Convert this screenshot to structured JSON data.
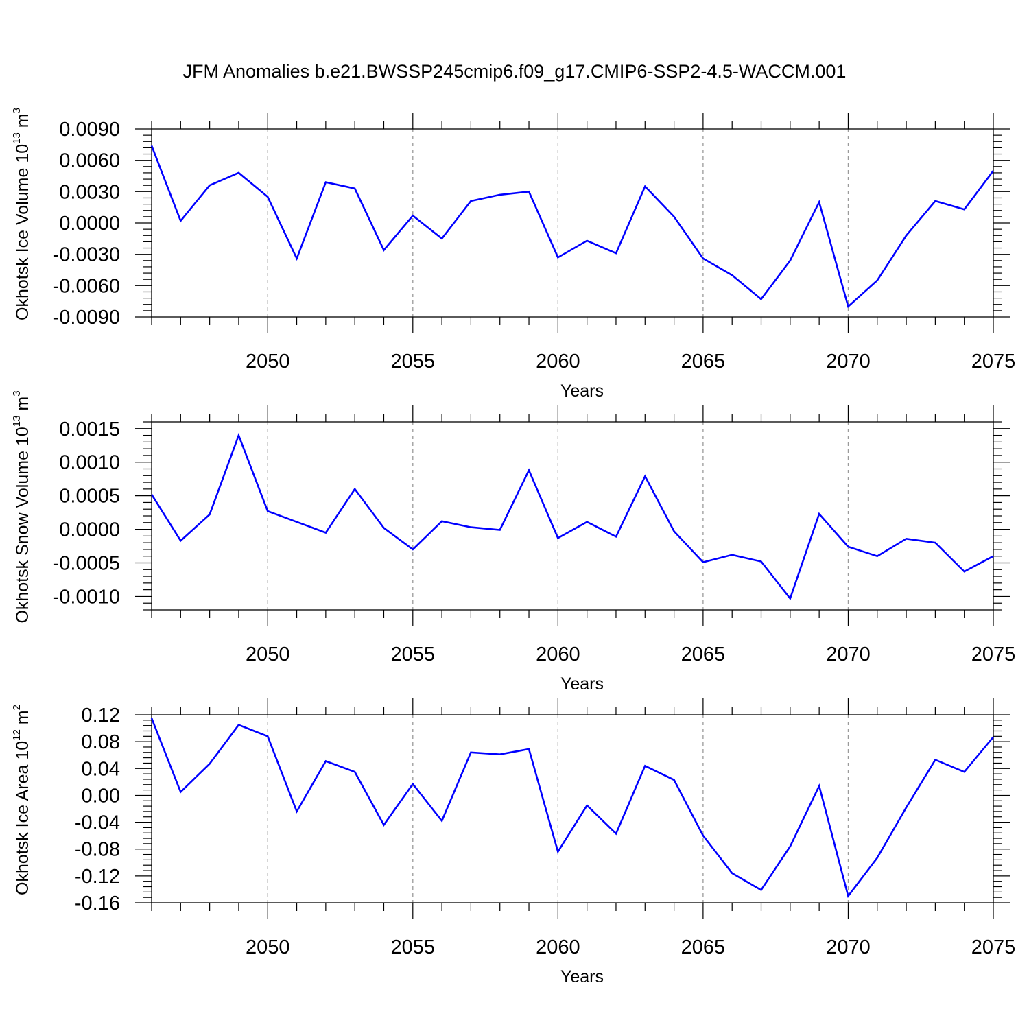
{
  "title": "JFM Anomalies b.e21.BWSSP245cmip6.f09_g17.CMIP6-SSP2-4.5-WACCM.001",
  "line_color": "#0000ff",
  "chart_data": [
    {
      "type": "line",
      "ylabel": "Okhotsk Ice Volume 10",
      "ylabel_exp": "13",
      "ylabel_unit": " m",
      "ylabel_unit_exp": "3",
      "xlabel": "Years",
      "xlim": [
        2046,
        2075
      ],
      "ylim": [
        -0.009,
        0.009
      ],
      "x_ticks": [
        2050,
        2055,
        2060,
        2065,
        2070,
        2075
      ],
      "y_ticks": [
        0.009,
        0.006,
        0.003,
        0.0,
        -0.003,
        -0.006,
        -0.009
      ],
      "y_tick_labels": [
        "0.0090",
        "0.0060",
        "0.0030",
        "0.0000",
        "-0.0030",
        "-0.0060",
        "-0.0090"
      ],
      "x": [
        2046,
        2047,
        2048,
        2049,
        2050,
        2051,
        2052,
        2053,
        2054,
        2055,
        2056,
        2057,
        2058,
        2059,
        2060,
        2061,
        2062,
        2063,
        2064,
        2065,
        2066,
        2067,
        2068,
        2069,
        2070,
        2071,
        2072,
        2073,
        2074,
        2075
      ],
      "values": [
        0.0074,
        0.0002,
        0.0036,
        0.0048,
        0.0025,
        -0.0034,
        0.0039,
        0.0033,
        -0.0026,
        0.0007,
        -0.0015,
        0.0021,
        0.0027,
        0.003,
        -0.0033,
        -0.0017,
        -0.0029,
        0.0035,
        0.0006,
        -0.0034,
        -0.005,
        -0.0073,
        -0.0036,
        0.002,
        -0.008,
        -0.0055,
        -0.0012,
        0.0021,
        0.0013,
        0.005
      ]
    },
    {
      "type": "line",
      "ylabel": "Okhotsk Snow Volume 10",
      "ylabel_exp": "13",
      "ylabel_unit": " m",
      "ylabel_unit_exp": "3",
      "xlabel": "Years",
      "xlim": [
        2046,
        2075
      ],
      "ylim": [
        -0.0012,
        0.0016
      ],
      "x_ticks": [
        2050,
        2055,
        2060,
        2065,
        2070,
        2075
      ],
      "y_ticks": [
        0.0015,
        0.001,
        0.0005,
        0.0,
        -0.0005,
        -0.001
      ],
      "y_tick_labels": [
        "0.0015",
        "0.0010",
        "0.0005",
        "0.0000",
        "-0.0005",
        "-0.0010"
      ],
      "x": [
        2046,
        2047,
        2048,
        2049,
        2050,
        2051,
        2052,
        2053,
        2054,
        2055,
        2056,
        2057,
        2058,
        2059,
        2060,
        2061,
        2062,
        2063,
        2064,
        2065,
        2066,
        2067,
        2068,
        2069,
        2070,
        2071,
        2072,
        2073,
        2074,
        2075
      ],
      "values": [
        0.00052,
        -0.00017,
        0.00022,
        0.0014,
        0.00027,
        0.00011,
        -5e-05,
        0.0006,
        2e-05,
        -0.0003,
        0.00012,
        3e-05,
        -1e-05,
        0.00088,
        -0.00013,
        0.00011,
        -0.00011,
        0.00079,
        -3e-05,
        -0.00049,
        -0.00038,
        -0.00048,
        -0.00103,
        0.00023,
        -0.00026,
        -0.0004,
        -0.00014,
        -0.0002,
        -0.00063,
        -0.0004
      ]
    },
    {
      "type": "line",
      "ylabel": "Okhotsk Ice Area 10",
      "ylabel_exp": "12",
      "ylabel_unit": " m",
      "ylabel_unit_exp": "2",
      "xlabel": "Years",
      "xlim": [
        2046,
        2075
      ],
      "ylim": [
        -0.16,
        0.12
      ],
      "x_ticks": [
        2050,
        2055,
        2060,
        2065,
        2070,
        2075
      ],
      "y_ticks": [
        0.12,
        0.08,
        0.04,
        0.0,
        -0.04,
        -0.08,
        -0.12,
        -0.16
      ],
      "y_tick_labels": [
        "0.12",
        "0.08",
        "0.04",
        "0.00",
        "-0.04",
        "-0.08",
        "-0.12",
        "-0.16"
      ],
      "x": [
        2046,
        2047,
        2048,
        2049,
        2050,
        2051,
        2052,
        2053,
        2054,
        2055,
        2056,
        2057,
        2058,
        2059,
        2060,
        2061,
        2062,
        2063,
        2064,
        2065,
        2066,
        2067,
        2068,
        2069,
        2070,
        2071,
        2072,
        2073,
        2074,
        2075
      ],
      "values": [
        0.115,
        0.005,
        0.047,
        0.105,
        0.088,
        -0.024,
        0.051,
        0.035,
        -0.044,
        0.017,
        -0.038,
        0.064,
        0.061,
        0.069,
        -0.084,
        -0.015,
        -0.057,
        0.044,
        0.023,
        -0.06,
        -0.116,
        -0.141,
        -0.076,
        0.014,
        -0.15,
        -0.093,
        -0.018,
        0.053,
        0.035,
        0.087
      ]
    }
  ]
}
